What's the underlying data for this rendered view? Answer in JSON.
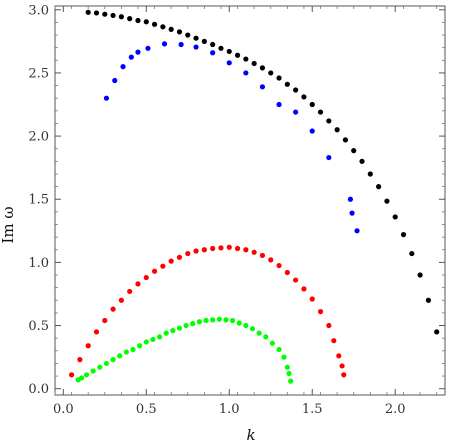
{
  "chart_data": {
    "type": "scatter",
    "title": "",
    "xlabel": "k",
    "ylabel": "Im ω",
    "xlim": [
      -0.05,
      2.3
    ],
    "ylim": [
      -0.05,
      3.03
    ],
    "x_ticks": [
      0.0,
      0.5,
      1.0,
      1.5,
      2.0
    ],
    "x_tick_labels": [
      "0.0",
      "0.5",
      "1.0",
      "1.5",
      "2.0"
    ],
    "y_ticks": [
      0.0,
      0.5,
      1.0,
      1.5,
      2.0,
      2.5,
      3.0
    ],
    "y_tick_labels": [
      "0.0",
      "0.5",
      "1.0",
      "1.5",
      "2.0",
      "2.5",
      "3.0"
    ],
    "grid": false,
    "legend": "none",
    "series": [
      {
        "color": "#000000",
        "points": [
          [
            0.15,
            2.98
          ],
          [
            0.2,
            2.975
          ],
          [
            0.25,
            2.965
          ],
          [
            0.3,
            2.955
          ],
          [
            0.35,
            2.945
          ],
          [
            0.4,
            2.93
          ],
          [
            0.45,
            2.915
          ],
          [
            0.5,
            2.905
          ],
          [
            0.55,
            2.885
          ],
          [
            0.6,
            2.865
          ],
          [
            0.65,
            2.845
          ],
          [
            0.7,
            2.825
          ],
          [
            0.75,
            2.8
          ],
          [
            0.8,
            2.775
          ],
          [
            0.85,
            2.75
          ],
          [
            0.9,
            2.725
          ],
          [
            0.95,
            2.695
          ],
          [
            1.0,
            2.67
          ],
          [
            1.05,
            2.64
          ],
          [
            1.1,
            2.61
          ],
          [
            1.15,
            2.575
          ],
          [
            1.2,
            2.54
          ],
          [
            1.25,
            2.5
          ],
          [
            1.3,
            2.46
          ],
          [
            1.35,
            2.41
          ],
          [
            1.4,
            2.365
          ],
          [
            1.45,
            2.31
          ],
          [
            1.5,
            2.25
          ],
          [
            1.55,
            2.19
          ],
          [
            1.6,
            2.12
          ],
          [
            1.65,
            2.05
          ],
          [
            1.7,
            1.97
          ],
          [
            1.75,
            1.885
          ],
          [
            1.8,
            1.8
          ],
          [
            1.85,
            1.7
          ],
          [
            1.9,
            1.6
          ],
          [
            1.95,
            1.485
          ],
          [
            2.0,
            1.36
          ],
          [
            2.05,
            1.22
          ],
          [
            2.1,
            1.07
          ],
          [
            2.15,
            0.9
          ],
          [
            2.2,
            0.7
          ],
          [
            2.25,
            0.45
          ]
        ]
      },
      {
        "color": "#0000ff",
        "points": [
          [
            0.26,
            2.3
          ],
          [
            0.31,
            2.44
          ],
          [
            0.36,
            2.55
          ],
          [
            0.41,
            2.625
          ],
          [
            0.45,
            2.665
          ],
          [
            0.51,
            2.695
          ],
          [
            0.61,
            2.73
          ],
          [
            0.71,
            2.725
          ],
          [
            0.8,
            2.705
          ],
          [
            0.9,
            2.66
          ],
          [
            1.0,
            2.58
          ],
          [
            1.1,
            2.5
          ],
          [
            1.2,
            2.39
          ],
          [
            1.3,
            2.25
          ],
          [
            1.4,
            2.19
          ],
          [
            1.5,
            2.04
          ],
          [
            1.6,
            1.83
          ],
          [
            1.73,
            1.5
          ],
          [
            1.74,
            1.39
          ],
          [
            1.77,
            1.25
          ]
        ]
      },
      {
        "color": "#ff0000",
        "points": [
          [
            0.05,
            0.11
          ],
          [
            0.1,
            0.23
          ],
          [
            0.15,
            0.34
          ],
          [
            0.2,
            0.45
          ],
          [
            0.25,
            0.54
          ],
          [
            0.3,
            0.63
          ],
          [
            0.35,
            0.7
          ],
          [
            0.4,
            0.77
          ],
          [
            0.45,
            0.83
          ],
          [
            0.5,
            0.88
          ],
          [
            0.55,
            0.93
          ],
          [
            0.6,
            0.97
          ],
          [
            0.65,
            1.01
          ],
          [
            0.7,
            1.04
          ],
          [
            0.75,
            1.07
          ],
          [
            0.8,
            1.09
          ],
          [
            0.85,
            1.1
          ],
          [
            0.9,
            1.11
          ],
          [
            0.95,
            1.115
          ],
          [
            1.0,
            1.12
          ],
          [
            1.05,
            1.11
          ],
          [
            1.1,
            1.1
          ],
          [
            1.15,
            1.08
          ],
          [
            1.2,
            1.055
          ],
          [
            1.25,
            1.02
          ],
          [
            1.3,
            0.975
          ],
          [
            1.35,
            0.92
          ],
          [
            1.4,
            0.86
          ],
          [
            1.45,
            0.79
          ],
          [
            1.5,
            0.71
          ],
          [
            1.55,
            0.61
          ],
          [
            1.6,
            0.5
          ],
          [
            1.63,
            0.38
          ],
          [
            1.66,
            0.26
          ],
          [
            1.68,
            0.18
          ],
          [
            1.69,
            0.11
          ]
        ]
      },
      {
        "color": "#00ff00",
        "points": [
          [
            0.09,
            0.07
          ],
          [
            0.11,
            0.085
          ],
          [
            0.14,
            0.11
          ],
          [
            0.18,
            0.14
          ],
          [
            0.22,
            0.17
          ],
          [
            0.26,
            0.2
          ],
          [
            0.3,
            0.23
          ],
          [
            0.34,
            0.26
          ],
          [
            0.38,
            0.29
          ],
          [
            0.42,
            0.31
          ],
          [
            0.46,
            0.34
          ],
          [
            0.5,
            0.37
          ],
          [
            0.54,
            0.39
          ],
          [
            0.58,
            0.41
          ],
          [
            0.62,
            0.44
          ],
          [
            0.66,
            0.46
          ],
          [
            0.7,
            0.48
          ],
          [
            0.74,
            0.5
          ],
          [
            0.78,
            0.515
          ],
          [
            0.82,
            0.53
          ],
          [
            0.86,
            0.54
          ],
          [
            0.9,
            0.545
          ],
          [
            0.94,
            0.55
          ],
          [
            0.98,
            0.545
          ],
          [
            1.02,
            0.54
          ],
          [
            1.06,
            0.52
          ],
          [
            1.1,
            0.5
          ],
          [
            1.14,
            0.475
          ],
          [
            1.18,
            0.44
          ],
          [
            1.22,
            0.41
          ],
          [
            1.26,
            0.36
          ],
          [
            1.3,
            0.31
          ],
          [
            1.33,
            0.25
          ],
          [
            1.35,
            0.17
          ],
          [
            1.36,
            0.12
          ],
          [
            1.37,
            0.06
          ]
        ]
      }
    ]
  }
}
